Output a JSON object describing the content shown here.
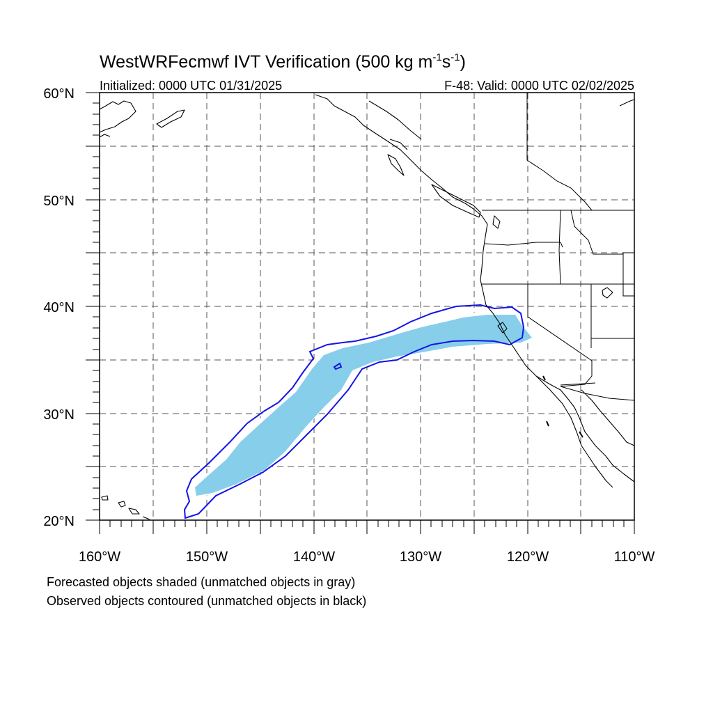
{
  "title": {
    "main": "WestWRFecmwf IVT Verification (500 kg m",
    "exp1": "-1",
    "mid": "s",
    "exp2": "-1",
    "close": ")"
  },
  "initialized": "Initialized: 0000 UTC 01/31/2025",
  "valid": "F-48: Valid: 0000 UTC 02/02/2025",
  "lat_labels": [
    "60°N",
    "50°N",
    "40°N",
    "30°N",
    "20°N"
  ],
  "lon_labels": [
    "160°W",
    "150°W",
    "140°W",
    "130°W",
    "120°W",
    "110°W"
  ],
  "notes": [
    "Forecasted objects shaded (unmatched objects in gray)",
    "Observed objects contoured (unmatched objects in black)"
  ],
  "map": {
    "lon_range": [
      -160,
      -110
    ],
    "lat_range": [
      20,
      60
    ],
    "grid_spacing_deg": 5,
    "grid_style": "dashed",
    "projection": "cylindrical equidistant"
  },
  "colors": {
    "forecast_fill": "#87ceeb",
    "observed_contour": "#1414e6",
    "coastline": "#000000",
    "grid": "#555555"
  }
}
